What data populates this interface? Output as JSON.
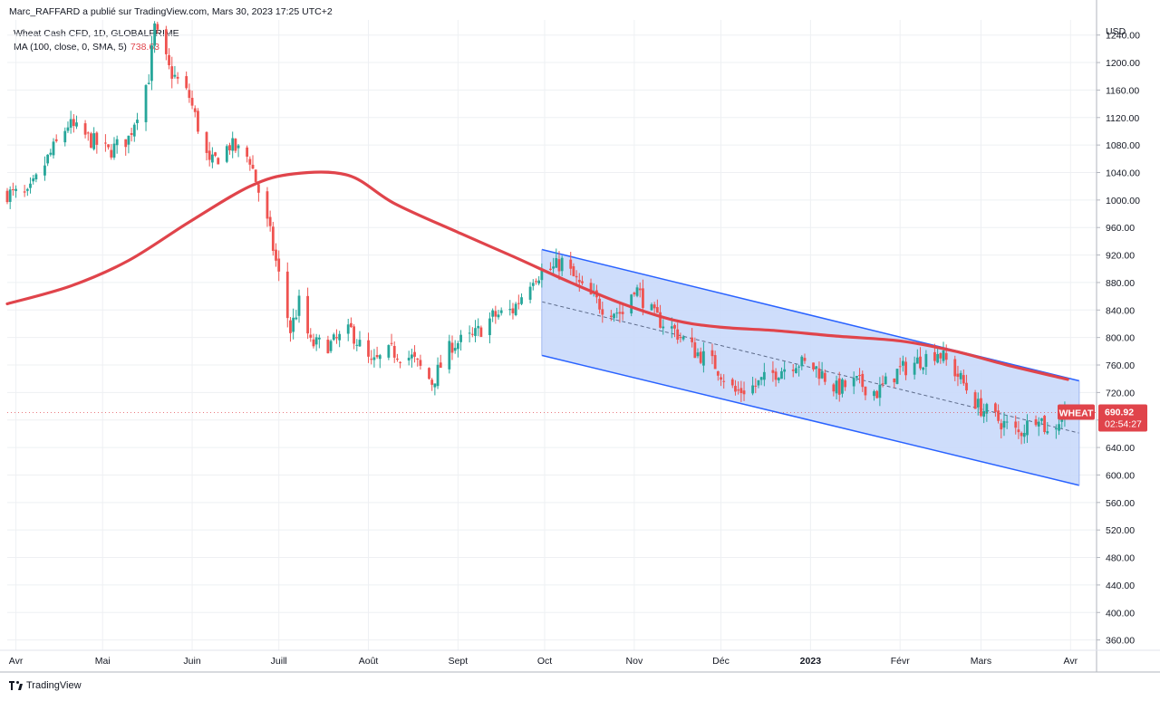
{
  "header": {
    "publisher_line": "Marc_RAFFARD a publié sur TradingView.com, Mars 30, 2023 17:25 UTC+2",
    "symbol_line": "Wheat Cash CFD, 1D, GLOBALPRIME",
    "ma_label": "MA (100, close, 0, SMA, 5)",
    "ma_value": "738.63"
  },
  "footer": {
    "brand": "TradingView"
  },
  "colors": {
    "up": "#26a69a",
    "down": "#ef5350",
    "ma_line": "#e0444b",
    "channel_line": "#2962ff",
    "channel_fill": "#c9d9fb",
    "grid": "#eef0f3",
    "price_tag": "#e0444b"
  },
  "chart_data": {
    "type": "candlestick",
    "title": "",
    "currency_label": "USD",
    "y_ticks": [
      360,
      400,
      440,
      480,
      520,
      560,
      600,
      640,
      680,
      720,
      760,
      800,
      840,
      880,
      920,
      960,
      1000,
      1040,
      1080,
      1120,
      1160,
      1200,
      1240
    ],
    "ylim": [
      345,
      1262
    ],
    "x_ticks": [
      {
        "label": "Avr",
        "date": "2022-04-01"
      },
      {
        "label": "Mai",
        "date": "2022-05-01"
      },
      {
        "label": "Juin",
        "date": "2022-06-01"
      },
      {
        "label": "Juill",
        "date": "2022-07-01"
      },
      {
        "label": "Août",
        "date": "2022-08-01"
      },
      {
        "label": "Sept",
        "date": "2022-09-01"
      },
      {
        "label": "Oct",
        "date": "2022-10-01"
      },
      {
        "label": "Nov",
        "date": "2022-11-01"
      },
      {
        "label": "Déc",
        "date": "2022-12-01"
      },
      {
        "label": "2023",
        "date": "2023-01-01"
      },
      {
        "label": "Févr",
        "date": "2023-02-01"
      },
      {
        "label": "Mars",
        "date": "2023-03-01"
      },
      {
        "label": "Avr",
        "date": "2023-04-01"
      }
    ],
    "xlim": [
      "2022-03-29",
      "2023-04-10"
    ],
    "close_path": [
      [
        "2022-03-29",
        1010
      ],
      [
        "2022-04-05",
        1005
      ],
      [
        "2022-04-12",
        1060
      ],
      [
        "2022-04-19",
        1110
      ],
      [
        "2022-04-26",
        1090
      ],
      [
        "2022-05-03",
        1070
      ],
      [
        "2022-05-10",
        1090
      ],
      [
        "2022-05-17",
        1180
      ],
      [
        "2022-05-19",
        1250
      ],
      [
        "2022-05-24",
        1190
      ],
      [
        "2022-05-31",
        1150
      ],
      [
        "2022-06-07",
        1050
      ],
      [
        "2022-06-14",
        1080
      ],
      [
        "2022-06-21",
        1060
      ],
      [
        "2022-06-28",
        950
      ],
      [
        "2022-07-05",
        810
      ],
      [
        "2022-07-08",
        850
      ],
      [
        "2022-07-12",
        790
      ],
      [
        "2022-07-19",
        790
      ],
      [
        "2022-07-26",
        810
      ],
      [
        "2022-08-02",
        760
      ],
      [
        "2022-08-09",
        780
      ],
      [
        "2022-08-16",
        770
      ],
      [
        "2022-08-23",
        735
      ],
      [
        "2022-08-30",
        790
      ],
      [
        "2022-09-06",
        800
      ],
      [
        "2022-09-13",
        830
      ],
      [
        "2022-09-20",
        840
      ],
      [
        "2022-09-27",
        890
      ],
      [
        "2022-10-04",
        900
      ],
      [
        "2022-10-07",
        910
      ],
      [
        "2022-10-14",
        870
      ],
      [
        "2022-10-21",
        845
      ],
      [
        "2022-10-28",
        835
      ],
      [
        "2022-11-01",
        875
      ],
      [
        "2022-11-08",
        830
      ],
      [
        "2022-11-15",
        810
      ],
      [
        "2022-11-22",
        780
      ],
      [
        "2022-11-29",
        760
      ],
      [
        "2022-12-06",
        720
      ],
      [
        "2022-12-13",
        730
      ],
      [
        "2022-12-20",
        750
      ],
      [
        "2022-12-27",
        765
      ],
      [
        "2023-01-03",
        755
      ],
      [
        "2023-01-10",
        725
      ],
      [
        "2023-01-17",
        735
      ],
      [
        "2023-01-24",
        720
      ],
      [
        "2023-01-31",
        750
      ],
      [
        "2023-02-07",
        765
      ],
      [
        "2023-02-14",
        780
      ],
      [
        "2023-02-21",
        745
      ],
      [
        "2023-02-28",
        700
      ],
      [
        "2023-03-07",
        680
      ],
      [
        "2023-03-14",
        660
      ],
      [
        "2023-03-21",
        690
      ],
      [
        "2023-03-24",
        660
      ],
      [
        "2023-03-30",
        690
      ]
    ],
    "ma_series": {
      "name": "MA (100, close, 0, SMA, 5)",
      "points": [
        [
          "2022-03-29",
          849
        ],
        [
          "2022-04-20",
          875
        ],
        [
          "2022-05-10",
          912
        ],
        [
          "2022-05-31",
          968
        ],
        [
          "2022-06-21",
          1020
        ],
        [
          "2022-07-06",
          1038
        ],
        [
          "2022-07-25",
          1036
        ],
        [
          "2022-08-10",
          995
        ],
        [
          "2022-09-01",
          953
        ],
        [
          "2022-09-20",
          918
        ],
        [
          "2022-10-10",
          880
        ],
        [
          "2022-10-28",
          849
        ],
        [
          "2022-11-15",
          825
        ],
        [
          "2022-12-01",
          815
        ],
        [
          "2022-12-20",
          810
        ],
        [
          "2023-01-10",
          802
        ],
        [
          "2023-02-01",
          795
        ],
        [
          "2023-02-20",
          780
        ],
        [
          "2023-03-10",
          760
        ],
        [
          "2023-03-31",
          739
        ]
      ]
    },
    "regression_channel": {
      "start_date": "2022-09-30",
      "end_date": "2023-04-04",
      "upper": [
        928,
        737
      ],
      "middle": [
        852,
        661
      ],
      "lower": [
        774,
        585
      ]
    },
    "last_price": {
      "symbol": "WHEAT",
      "price": "690.92",
      "countdown": "02:54:27",
      "value": 690.92
    }
  }
}
